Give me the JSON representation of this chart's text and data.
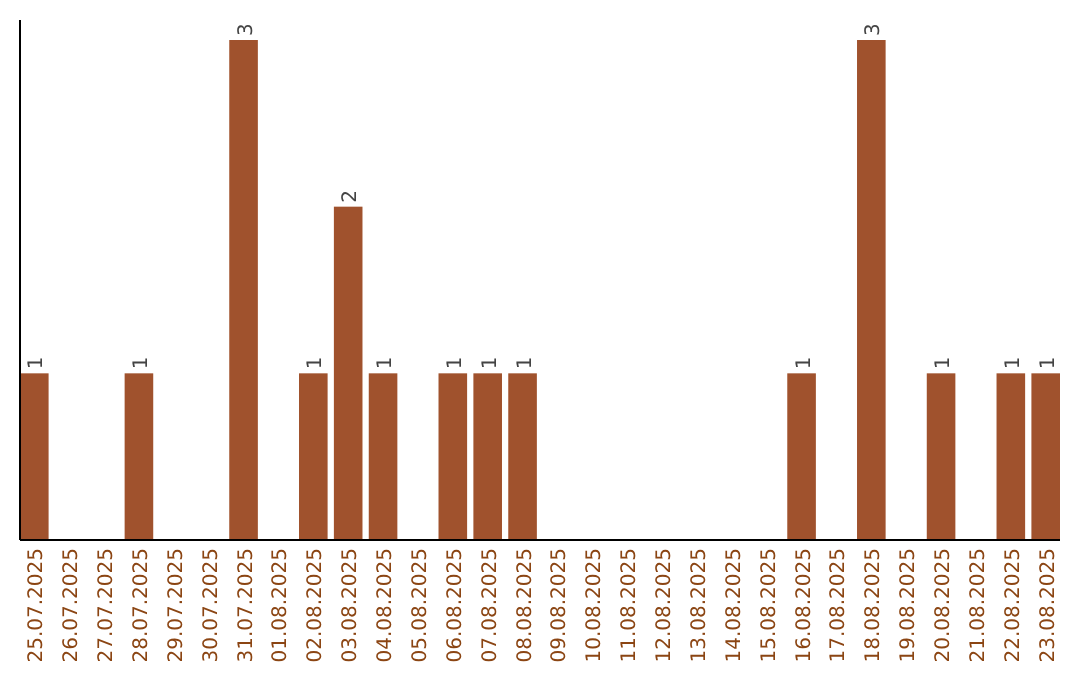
{
  "chart_data": {
    "type": "bar",
    "categories": [
      "25.07.2025",
      "26.07.2025",
      "27.07.2025",
      "28.07.2025",
      "29.07.2025",
      "30.07.2025",
      "31.07.2025",
      "01.08.2025",
      "02.08.2025",
      "03.08.2025",
      "04.08.2025",
      "05.08.2025",
      "06.08.2025",
      "07.08.2025",
      "08.08.2025",
      "09.08.2025",
      "10.08.2025",
      "11.08.2025",
      "12.08.2025",
      "13.08.2025",
      "14.08.2025",
      "15.08.2025",
      "16.08.2025",
      "17.08.2025",
      "18.08.2025",
      "19.08.2025",
      "20.08.2025",
      "21.08.2025",
      "22.08.2025",
      "23.08.2025"
    ],
    "values": [
      1,
      0,
      0,
      1,
      0,
      0,
      3,
      0,
      1,
      2,
      1,
      0,
      1,
      1,
      1,
      0,
      0,
      0,
      0,
      0,
      0,
      0,
      1,
      0,
      3,
      0,
      1,
      0,
      1,
      1
    ],
    "value_labels": [
      "1",
      null,
      null,
      "1",
      null,
      null,
      "3",
      null,
      "1",
      "2",
      "1",
      null,
      "1",
      "1",
      "1",
      null,
      null,
      null,
      null,
      null,
      null,
      null,
      "1",
      null,
      "3",
      null,
      "1",
      null,
      "1",
      "1"
    ],
    "color": "#a0522d",
    "ylim": [
      0,
      3
    ],
    "tick_labels": "x"
  }
}
